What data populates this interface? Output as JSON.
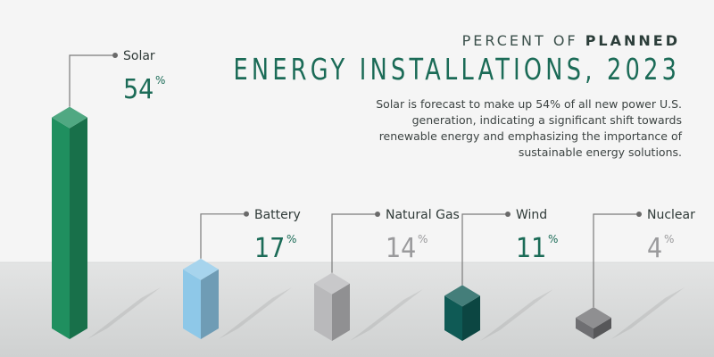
{
  "header": {
    "kicker_light": "PERCENT OF",
    "kicker_bold": "PLANNED",
    "title": "ENERGY INSTALLATIONS, 2023",
    "subtitle": "Solar is forecast to make up 54% of all new power U.S. generation, indicating a significant shift towards renewable energy and emphasizing the importance of sustainable energy solutions."
  },
  "colors": {
    "solar": "#1f8f5f",
    "battery": "#8ec8e8",
    "natural_gas": "#b9b9bb",
    "wind": "#0f5a55",
    "nuclear": "#6f6f72",
    "dark_value": "#1b6b57",
    "grey_value": "#9a9a9c"
  },
  "chart_data": {
    "type": "bar",
    "title": "ENERGY INSTALLATIONS, 2023",
    "categories": [
      "Solar",
      "Battery",
      "Natural Gas",
      "Wind",
      "Nuclear"
    ],
    "values": [
      54,
      17,
      14,
      11,
      4
    ],
    "value_labels": [
      "54",
      "17",
      "14",
      "11",
      "4"
    ],
    "unit": "%",
    "value_label_colors": [
      "#1b6b57",
      "#1b6b57",
      "#9a9a9c",
      "#1b6b57",
      "#9a9a9c"
    ],
    "bar_colors": [
      "#1f8f5f",
      "#8ec8e8",
      "#b9b9bb",
      "#0f5a55",
      "#6f6f72"
    ],
    "grid": false,
    "legend": "none"
  }
}
